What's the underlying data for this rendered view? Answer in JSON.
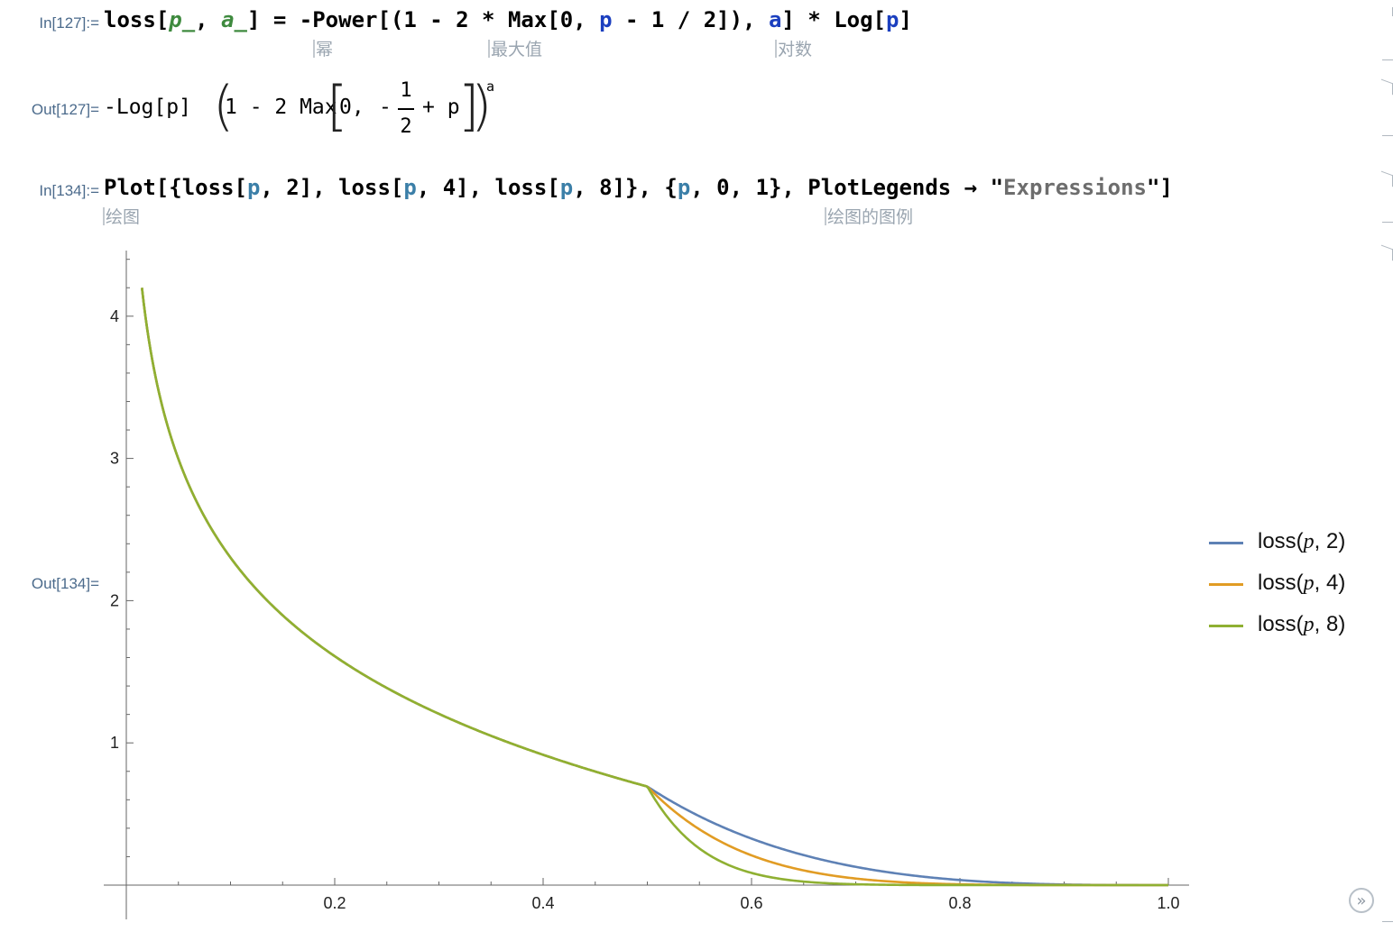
{
  "cells": [
    {
      "in_label": "In[127]:=",
      "out_label": "Out[127]=",
      "hints": [
        "幂",
        "最大值",
        "对数"
      ],
      "output": {
        "neg_log": "-Log[p]",
        "base_text": "1 - 2 Max",
        "zero": "0,",
        "minus": "-",
        "num": "1",
        "den": "2",
        "plus_p": "+ p",
        "exponent": "a"
      }
    },
    {
      "in_label": "In[134]:=",
      "out_label": "Out[134]=",
      "hints": [
        "绘图",
        "绘图的图例"
      ]
    }
  ],
  "chart_data": {
    "type": "line",
    "x_range": [
      0,
      1
    ],
    "ylim": [
      0,
      4.4
    ],
    "x_ticks": [
      "0.2",
      "0.4",
      "0.6",
      "0.8",
      "1.0"
    ],
    "y_ticks": [
      "1",
      "2",
      "3",
      "4"
    ],
    "legend_position": "right",
    "series": [
      {
        "name": "loss(p, 2)",
        "a": 2,
        "color": "#5e81b5",
        "x": [
          0.015,
          0.05,
          0.1,
          0.2,
          0.3,
          0.4,
          0.5,
          0.55,
          0.6,
          0.65,
          0.7,
          0.8,
          0.9,
          1.0
        ],
        "values": [
          4.2,
          3.0,
          2.303,
          1.609,
          1.204,
          0.916,
          0.693,
          0.478,
          0.328,
          0.211,
          0.128,
          0.036,
          0.005,
          0
        ]
      },
      {
        "name": "loss(p, 4)",
        "a": 4,
        "color": "#e19c24",
        "x": [
          0.015,
          0.05,
          0.1,
          0.2,
          0.3,
          0.4,
          0.5,
          0.55,
          0.6,
          0.65,
          0.7,
          0.8,
          0.9,
          1.0
        ],
        "values": [
          4.2,
          3.0,
          2.303,
          1.609,
          1.204,
          0.916,
          0.693,
          0.39,
          0.208,
          0.105,
          0.048,
          0.006,
          0.0,
          0
        ]
      },
      {
        "name": "loss(p, 8)",
        "a": 8,
        "color": "#8fb032",
        "x": [
          0.015,
          0.05,
          0.1,
          0.2,
          0.3,
          0.4,
          0.5,
          0.55,
          0.6,
          0.65,
          0.7,
          0.8,
          0.9,
          1.0
        ],
        "values": [
          4.2,
          3.0,
          2.303,
          1.609,
          1.204,
          0.916,
          0.693,
          0.26,
          0.084,
          0.022,
          0.005,
          0.0,
          0.0,
          0
        ]
      }
    ]
  }
}
